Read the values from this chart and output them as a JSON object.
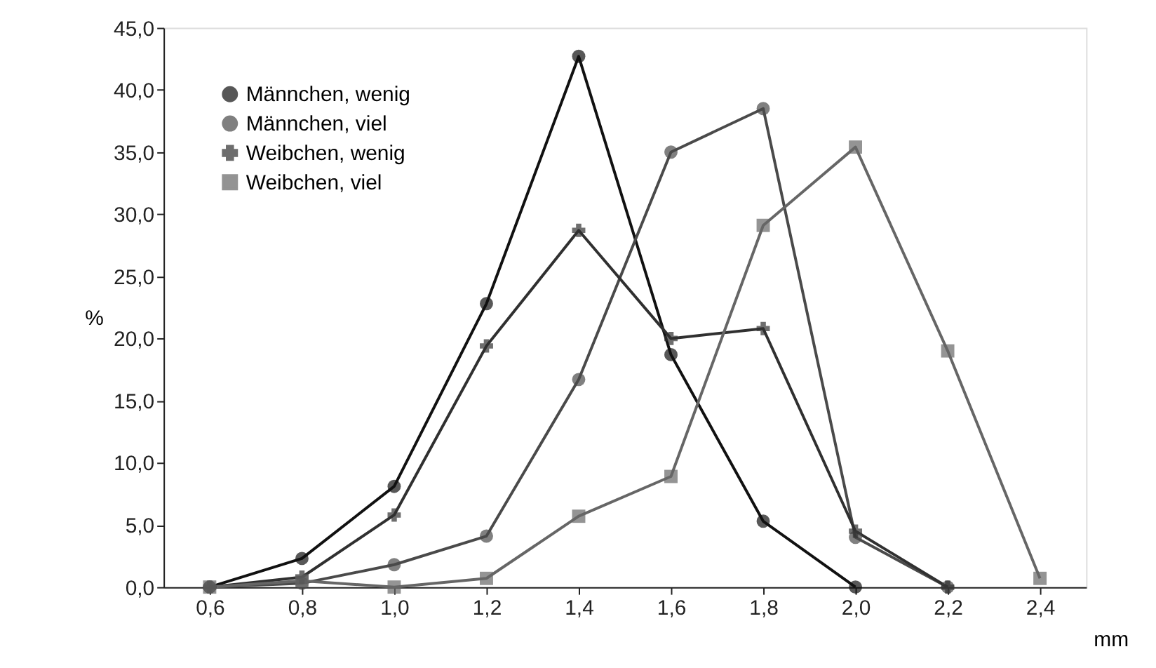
{
  "chart_data": {
    "type": "line",
    "xlabel": "mm",
    "ylabel": "%",
    "categories": [
      "0,6",
      "0,8",
      "1,0",
      "1,2",
      "1,4",
      "1,6",
      "1,8",
      "2,0",
      "2,2",
      "2,4"
    ],
    "series": [
      {
        "name": "Männchen,  wenig",
        "color": "#111111",
        "marker": "circle",
        "values": [
          0,
          2.3,
          8.1,
          22.8,
          42.7,
          18.7,
          5.3,
          0,
          null,
          null
        ]
      },
      {
        "name": "Männchen,  viel",
        "color": "#4a4a4a",
        "marker": "circle",
        "values": [
          0,
          0.3,
          1.8,
          4.1,
          16.7,
          35.0,
          38.5,
          4.0,
          0,
          null
        ]
      },
      {
        "name": "Weibchen,  wenig",
        "color": "#303030",
        "marker": "cross",
        "values": [
          0,
          0.8,
          5.8,
          19.4,
          28.7,
          20.0,
          20.8,
          4.5,
          0,
          null
        ]
      },
      {
        "name": "Weibchen,  viel",
        "color": "#666666",
        "marker": "square",
        "values": [
          0,
          0.5,
          0,
          0.7,
          5.7,
          8.9,
          29.1,
          35.4,
          19.0,
          0.7
        ]
      }
    ],
    "ylim": [
      0,
      45
    ],
    "yticks": [
      {
        "value": 0,
        "label": "0,0"
      },
      {
        "value": 5,
        "label": "5,0"
      },
      {
        "value": 10,
        "label": "10,0"
      },
      {
        "value": 15,
        "label": "15,0"
      },
      {
        "value": 20,
        "label": "20,0"
      },
      {
        "value": 25,
        "label": "25,0"
      },
      {
        "value": 30,
        "label": "30,0"
      },
      {
        "value": 35,
        "label": "35,0"
      },
      {
        "value": 40,
        "label": "40,0"
      },
      {
        "value": 45,
        "label": "45,0"
      }
    ],
    "grid": false,
    "legend": "top left",
    "line_style": "solid"
  }
}
